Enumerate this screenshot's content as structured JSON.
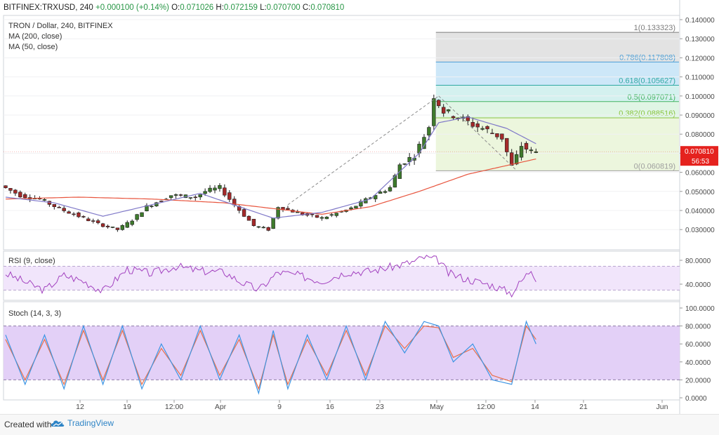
{
  "header": {
    "symbol": "BITFINEX:TRXUSD, 240",
    "change": "+0.000100 (+0.14%)",
    "o_label": "O:",
    "o_value": "0.071026",
    "h_label": "H:",
    "h_value": "0.072159",
    "l_label": "L:",
    "l_value": "0.070700",
    "c_label": "C:",
    "c_value": "0.070810"
  },
  "legend": {
    "main": "TRON / Dollar, 240, BITFINEX",
    "ma200": "MA (200, close)",
    "ma50": "MA (50, close)"
  },
  "price_badges": {
    "last": "0.070810",
    "countdown": "56:53"
  },
  "footer": {
    "created_with": "Created with",
    "brand": "TradingView"
  },
  "colors": {
    "up": "#3e7b2c",
    "down": "#a52a2a",
    "ma200": "#e8553e",
    "ma50": "#7f78c8",
    "rsi": "#a241bf",
    "stoch_k": "#3d95e3",
    "stoch_d": "#e86f4a",
    "last_price": "#e5221e"
  },
  "chart_data": [
    {
      "type": "candlestick",
      "title": "TRON / Dollar, 240, BITFINEX",
      "x_ticks": [
        "12",
        "19",
        "12:00",
        "Apr",
        "9",
        "16",
        "23",
        "May",
        "12:00",
        "14",
        "21",
        "Jun"
      ],
      "y_ticks": [
        "0.140000",
        "0.130000",
        "0.120000",
        "0.110000",
        "0.100000",
        "0.090000",
        "0.080000",
        "0.070000",
        "0.060000",
        "0.050000",
        "0.040000",
        "0.030000"
      ],
      "ylim": [
        0.021,
        0.142
      ],
      "price_path": [
        [
          0,
          0.053
        ],
        [
          4,
          0.048
        ],
        [
          8,
          0.046
        ],
        [
          12,
          0.041
        ],
        [
          16,
          0.037
        ],
        [
          20,
          0.033
        ],
        [
          24,
          0.03
        ],
        [
          27,
          0.035
        ],
        [
          30,
          0.042
        ],
        [
          35,
          0.048
        ],
        [
          40,
          0.047
        ],
        [
          42,
          0.05
        ],
        [
          45,
          0.052
        ],
        [
          48,
          0.043
        ],
        [
          52,
          0.032
        ],
        [
          55,
          0.03
        ],
        [
          57,
          0.042
        ],
        [
          62,
          0.038
        ],
        [
          66,
          0.036
        ],
        [
          72,
          0.041
        ],
        [
          76,
          0.047
        ],
        [
          80,
          0.052
        ],
        [
          82,
          0.064
        ],
        [
          85,
          0.069
        ],
        [
          88,
          0.084
        ],
        [
          89,
          0.1
        ],
        [
          91,
          0.092
        ],
        [
          94,
          0.089
        ],
        [
          97,
          0.085
        ],
        [
          100,
          0.082
        ],
        [
          103,
          0.078
        ],
        [
          105,
          0.063
        ],
        [
          107,
          0.074
        ],
        [
          109,
          0.0708
        ]
      ],
      "ma200": [
        [
          0,
          0.046
        ],
        [
          15,
          0.047
        ],
        [
          30,
          0.046
        ],
        [
          45,
          0.044
        ],
        [
          55,
          0.041
        ],
        [
          65,
          0.038
        ],
        [
          75,
          0.042
        ],
        [
          85,
          0.05
        ],
        [
          95,
          0.059
        ],
        [
          109,
          0.067
        ]
      ],
      "ma50": [
        [
          0,
          0.047
        ],
        [
          10,
          0.044
        ],
        [
          20,
          0.037
        ],
        [
          30,
          0.043
        ],
        [
          40,
          0.049
        ],
        [
          48,
          0.042
        ],
        [
          55,
          0.036
        ],
        [
          65,
          0.039
        ],
        [
          75,
          0.046
        ],
        [
          85,
          0.07
        ],
        [
          89,
          0.086
        ],
        [
          95,
          0.089
        ],
        [
          103,
          0.083
        ],
        [
          109,
          0.075
        ]
      ],
      "fibonacci": [
        {
          "ratio": "1",
          "level": 0.133323,
          "label": "1(0.133323)"
        },
        {
          "ratio": "0.786",
          "level": 0.117808,
          "label": "0.786(0.117808)"
        },
        {
          "ratio": "0.618",
          "level": 0.105627,
          "label": "0.618(0.105627)"
        },
        {
          "ratio": "0.5",
          "level": 0.097071,
          "label": "0.5(0.097071)"
        },
        {
          "ratio": "0.382",
          "level": 0.088516,
          "label": "0.382(0.088516)"
        },
        {
          "ratio": "0",
          "level": 0.060819,
          "label": "0(0.060819)"
        }
      ],
      "trend_lines": [
        {
          "from": [
            58,
            0.043
          ],
          "to": [
            89,
            0.1
          ]
        },
        {
          "from": [
            89,
            0.1
          ],
          "to": [
            105,
            0.061
          ]
        }
      ],
      "last_price": 0.07081
    },
    {
      "type": "line",
      "title": "RSI (9, close)",
      "y_ticks": [
        "80.0000",
        "40.0000"
      ],
      "ylim": [
        10,
        95
      ],
      "bands": [
        70,
        30
      ],
      "path": [
        [
          0,
          58
        ],
        [
          5,
          40
        ],
        [
          8,
          30
        ],
        [
          12,
          55
        ],
        [
          16,
          45
        ],
        [
          20,
          28
        ],
        [
          25,
          65
        ],
        [
          30,
          58
        ],
        [
          35,
          70
        ],
        [
          40,
          62
        ],
        [
          45,
          60
        ],
        [
          48,
          45
        ],
        [
          52,
          30
        ],
        [
          56,
          60
        ],
        [
          60,
          55
        ],
        [
          65,
          45
        ],
        [
          70,
          60
        ],
        [
          75,
          62
        ],
        [
          80,
          70
        ],
        [
          84,
          78
        ],
        [
          86,
          85
        ],
        [
          89,
          80
        ],
        [
          91,
          58
        ],
        [
          95,
          48
        ],
        [
          100,
          38
        ],
        [
          104,
          25
        ],
        [
          106,
          45
        ],
        [
          108,
          65
        ],
        [
          109,
          50
        ]
      ]
    },
    {
      "type": "line",
      "title": "Stoch (14, 3, 3)",
      "y_ticks": [
        "100.0000",
        "80.0000",
        "60.0000",
        "40.0000",
        "20.0000",
        "0.0000"
      ],
      "ylim": [
        0,
        100
      ],
      "bands": [
        80,
        20
      ],
      "k_path": [
        [
          0,
          70
        ],
        [
          4,
          15
        ],
        [
          8,
          70
        ],
        [
          12,
          10
        ],
        [
          16,
          80
        ],
        [
          20,
          15
        ],
        [
          24,
          80
        ],
        [
          28,
          10
        ],
        [
          32,
          60
        ],
        [
          36,
          20
        ],
        [
          40,
          80
        ],
        [
          44,
          20
        ],
        [
          48,
          70
        ],
        [
          52,
          5
        ],
        [
          55,
          75
        ],
        [
          58,
          10
        ],
        [
          62,
          70
        ],
        [
          66,
          20
        ],
        [
          70,
          80
        ],
        [
          74,
          20
        ],
        [
          78,
          85
        ],
        [
          82,
          50
        ],
        [
          86,
          85
        ],
        [
          89,
          80
        ],
        [
          92,
          40
        ],
        [
          96,
          60
        ],
        [
          100,
          20
        ],
        [
          104,
          15
        ],
        [
          107,
          85
        ],
        [
          109,
          60
        ]
      ],
      "d_path": [
        [
          0,
          65
        ],
        [
          4,
          20
        ],
        [
          8,
          65
        ],
        [
          12,
          15
        ],
        [
          16,
          75
        ],
        [
          20,
          20
        ],
        [
          24,
          75
        ],
        [
          28,
          15
        ],
        [
          32,
          55
        ],
        [
          36,
          25
        ],
        [
          40,
          75
        ],
        [
          44,
          25
        ],
        [
          48,
          65
        ],
        [
          52,
          10
        ],
        [
          55,
          70
        ],
        [
          58,
          15
        ],
        [
          62,
          65
        ],
        [
          66,
          25
        ],
        [
          70,
          75
        ],
        [
          74,
          25
        ],
        [
          78,
          80
        ],
        [
          82,
          55
        ],
        [
          86,
          80
        ],
        [
          89,
          78
        ],
        [
          92,
          45
        ],
        [
          96,
          55
        ],
        [
          100,
          25
        ],
        [
          104,
          18
        ],
        [
          107,
          80
        ],
        [
          109,
          65
        ]
      ]
    }
  ]
}
